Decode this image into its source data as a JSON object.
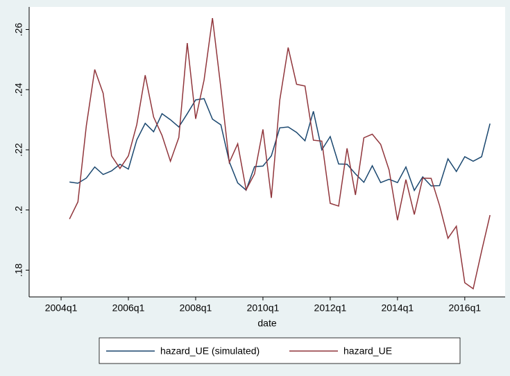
{
  "chart_data": {
    "type": "line",
    "x_label": "date",
    "x": [
      2004.25,
      2004.5,
      2004.75,
      2005,
      2005.25,
      2005.5,
      2005.75,
      2006,
      2006.25,
      2006.5,
      2006.75,
      2007,
      2007.25,
      2007.5,
      2007.75,
      2008,
      2008.25,
      2008.5,
      2008.75,
      2009,
      2009.25,
      2009.5,
      2009.75,
      2010,
      2010.25,
      2010.5,
      2010.75,
      2011,
      2011.25,
      2011.5,
      2011.75,
      2012,
      2012.25,
      2012.5,
      2012.75,
      2013,
      2013.25,
      2013.5,
      2013.75,
      2014,
      2014.25,
      2014.5,
      2014.75,
      2015,
      2015.25,
      2015.5,
      2015.75,
      2016,
      2016.25,
      2016.5,
      2016.75
    ],
    "series": [
      {
        "name": "hazard_UE (simulated)",
        "color": "#1a476f",
        "values": [
          0.2093,
          0.2089,
          0.2106,
          0.2143,
          0.2118,
          0.213,
          0.2152,
          0.2136,
          0.2233,
          0.2288,
          0.226,
          0.232,
          0.23,
          0.2276,
          0.232,
          0.2366,
          0.237,
          0.2302,
          0.2283,
          0.216,
          0.209,
          0.2066,
          0.2144,
          0.2146,
          0.218,
          0.2273,
          0.2276,
          0.2258,
          0.223,
          0.2328,
          0.22,
          0.2244,
          0.2153,
          0.2152,
          0.212,
          0.2092,
          0.2147,
          0.2091,
          0.2102,
          0.2091,
          0.2143,
          0.2065,
          0.211,
          0.208,
          0.2081,
          0.217,
          0.2128,
          0.2177,
          0.2162,
          0.2177,
          0.2287
        ]
      },
      {
        "name": "hazard_UE",
        "color": "#90353b",
        "values": [
          0.197,
          0.2027,
          0.228,
          0.2467,
          0.2388,
          0.218,
          0.2138,
          0.218,
          0.2284,
          0.2448,
          0.2309,
          0.2248,
          0.2162,
          0.2241,
          0.2555,
          0.2303,
          0.2432,
          0.2638,
          0.2405,
          0.2158,
          0.222,
          0.2067,
          0.212,
          0.2268,
          0.204,
          0.2365,
          0.254,
          0.2418,
          0.2412,
          0.2232,
          0.2229,
          0.2022,
          0.2013,
          0.2205,
          0.205,
          0.224,
          0.2252,
          0.2218,
          0.2133,
          0.1966,
          0.2101,
          0.1985,
          0.2106,
          0.2105,
          0.2015,
          0.1906,
          0.1946,
          0.1758,
          0.1738,
          0.1863,
          0.1983
        ]
      }
    ],
    "xlim": [
      2003.05,
      2017.2
    ],
    "xticks": [
      {
        "value": 2004,
        "label": "2004q1"
      },
      {
        "value": 2006,
        "label": "2006q1"
      },
      {
        "value": 2008,
        "label": "2008q1"
      },
      {
        "value": 2010,
        "label": "2010q1"
      },
      {
        "value": 2012,
        "label": "2012q1"
      },
      {
        "value": 2014,
        "label": "2014q1"
      },
      {
        "value": 2016,
        "label": "2016q1"
      }
    ],
    "ylim": [
      0.1711,
      0.2675
    ],
    "yticks": [
      {
        "value": 0.18,
        "label": ".18"
      },
      {
        "value": 0.2,
        "label": ".2"
      },
      {
        "value": 0.22,
        "label": ".22"
      },
      {
        "value": 0.24,
        "label": ".24"
      },
      {
        "value": 0.26,
        "label": ".26"
      }
    ],
    "grid": false
  }
}
